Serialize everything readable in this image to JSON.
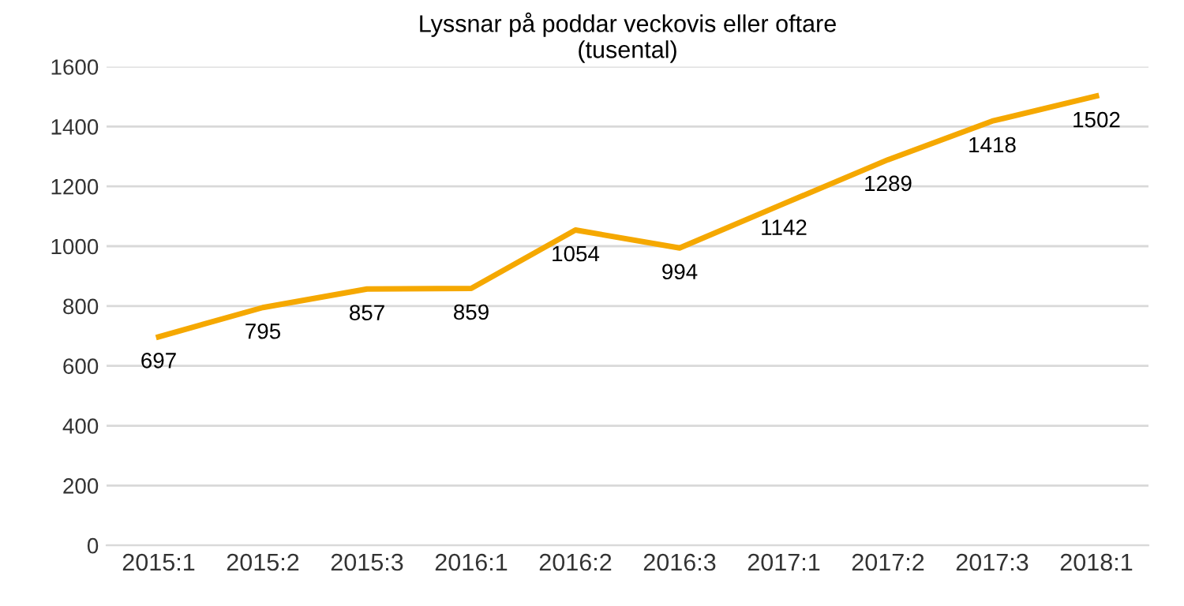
{
  "chart_data": {
    "type": "line",
    "title": "Lyssnar på poddar veckovis eller oftare\n(tusental)",
    "categories": [
      "2015:1",
      "2015:2",
      "2015:3",
      "2016:1",
      "2016:2",
      "2016:3",
      "2017:1",
      "2017:2",
      "2017:3",
      "2018:1"
    ],
    "series": [
      {
        "color": "#f5a800",
        "values": [
          697,
          795,
          857,
          859,
          1054,
          994,
          1142,
          1289,
          1418,
          1502
        ]
      }
    ],
    "ylim": [
      0,
      1600
    ],
    "yticks": [
      0,
      200,
      400,
      600,
      800,
      1000,
      1200,
      1400,
      1600
    ],
    "grid": "y",
    "data_labels": true,
    "marker": "none",
    "line_style": "solid"
  }
}
